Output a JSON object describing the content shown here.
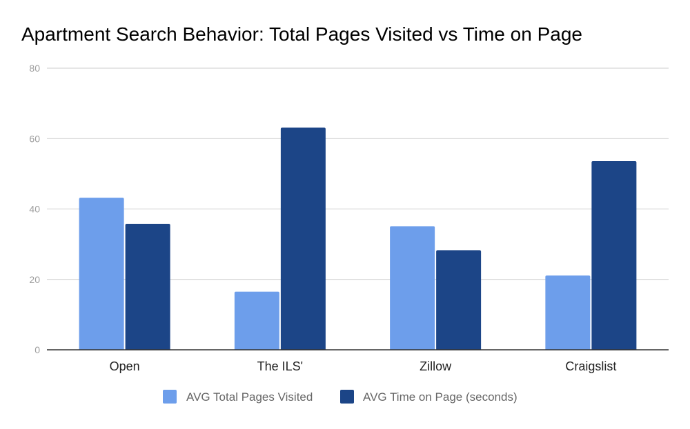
{
  "chart_data": {
    "type": "bar",
    "title": "Apartment Search Behavior: Total Pages Visited vs Time on Page",
    "xlabel": "",
    "ylabel": "",
    "categories": [
      "Open",
      "The ILS'",
      "Zillow",
      "Craigslist"
    ],
    "series": [
      {
        "name": "AVG Total Pages Visited",
        "color": "#6d9eeb",
        "values": [
          43.2,
          16.5,
          35.1,
          21.1
        ]
      },
      {
        "name": "AVG Time on Page (seconds)",
        "color": "#1c4587",
        "values": [
          35.8,
          63.1,
          28.3,
          53.6
        ]
      }
    ],
    "ylim": [
      0,
      80
    ],
    "yticks": [
      0,
      20,
      40,
      60,
      80
    ],
    "grid": true,
    "legend_position": "bottom"
  }
}
